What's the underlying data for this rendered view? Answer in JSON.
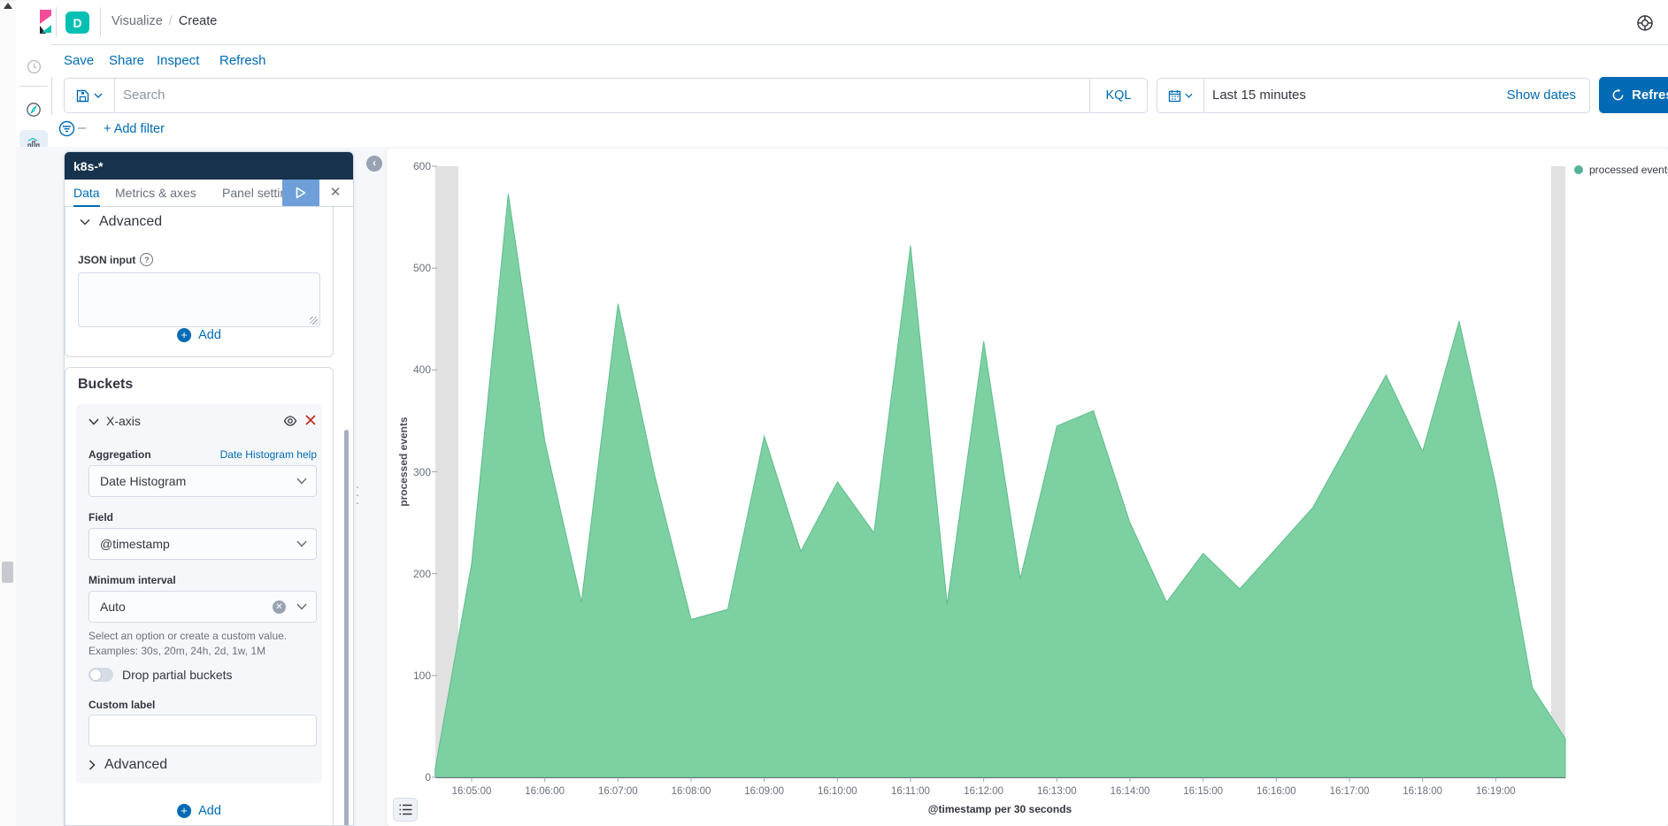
{
  "header": {
    "space_badge": "D",
    "breadcrumb": [
      "Visualize",
      "Create"
    ],
    "help_icon": "help-life-ring"
  },
  "toolbar": {
    "links": [
      "Save",
      "Share",
      "Inspect",
      "Refresh"
    ]
  },
  "query_bar": {
    "search_placeholder": "Search",
    "language_toggle": "KQL",
    "date_quick": "Last 15 minutes",
    "show_dates": "Show dates",
    "refresh_button": "Refresh"
  },
  "filter_bar": {
    "add_filter": "+ Add filter"
  },
  "sidebar": {
    "items": [
      {
        "icon": "discover",
        "active": false
      },
      {
        "icon": "visualize",
        "active": true
      },
      {
        "icon": "dashboard",
        "active": false
      },
      {
        "icon": "canvas",
        "active": false
      },
      {
        "icon": "maps",
        "active": false
      },
      {
        "icon": "machine-learning",
        "active": false
      },
      {
        "icon": "infrastructure",
        "active": false
      },
      {
        "icon": "logs",
        "active": false
      },
      {
        "icon": "apm",
        "active": false
      },
      {
        "icon": "uptime",
        "active": false
      },
      {
        "icon": "siem",
        "active": false
      },
      {
        "icon": "dev-tools",
        "active": false
      },
      {
        "icon": "stack-monitoring",
        "active": false
      },
      {
        "icon": "management",
        "active": false
      }
    ]
  },
  "editor": {
    "index_title": "k8s-*",
    "tabs": [
      "Data",
      "Metrics & axes",
      "Panel settings"
    ],
    "active_tab": "Data",
    "metrics_card": {
      "advanced_label": "Advanced",
      "json_input_label": "JSON input",
      "add_label": "Add"
    },
    "buckets_card": {
      "title": "Buckets",
      "section_label": "X-axis",
      "aggregation_label": "Aggregation",
      "aggregation_help": "Date Histogram help",
      "aggregation_value": "Date Histogram",
      "field_label": "Field",
      "field_value": "@timestamp",
      "min_interval_label": "Minimum interval",
      "min_interval_value": "Auto",
      "hint_line1": "Select an option or create a custom value.",
      "hint_line2": "Examples: 30s, 20m, 24h, 2d, 1w, 1M",
      "drop_partial_label": "Drop partial buckets",
      "custom_label": "Custom label",
      "advanced_label": "Advanced",
      "add_label": "Add"
    }
  },
  "chart_data": {
    "type": "area",
    "series": [
      {
        "name": "processed events",
        "color": "#7CD0A1",
        "values": [
          8,
          210,
          573,
          330,
          172,
          465,
          297,
          155,
          165,
          335,
          222,
          290,
          240,
          522,
          170,
          428,
          195,
          345,
          360,
          250,
          172,
          220,
          185,
          225,
          265,
          330,
          395,
          320,
          448,
          287,
          88
        ]
      }
    ],
    "x": [
      "16:04:30",
      "16:05:00",
      "16:05:30",
      "16:06:00",
      "16:06:30",
      "16:07:00",
      "16:07:30",
      "16:08:00",
      "16:08:30",
      "16:09:00",
      "16:09:30",
      "16:10:00",
      "16:10:30",
      "16:11:00",
      "16:11:30",
      "16:12:00",
      "16:12:30",
      "16:13:00",
      "16:13:30",
      "16:14:00",
      "16:14:30",
      "16:15:00",
      "16:15:30",
      "16:16:00",
      "16:16:30",
      "16:17:00",
      "16:17:30",
      "16:18:00",
      "16:18:30",
      "16:19:00",
      "16:19:30"
    ],
    "x_tick_labels": [
      "16:05:00",
      "16:06:00",
      "16:07:00",
      "16:08:00",
      "16:09:00",
      "16:10:00",
      "16:11:00",
      "16:12:00",
      "16:13:00",
      "16:14:00",
      "16:15:00",
      "16:16:00",
      "16:17:00",
      "16:18:00",
      "16:19:00"
    ],
    "y_ticks": [
      0,
      100,
      200,
      300,
      400,
      500,
      600
    ],
    "ylim": [
      0,
      600
    ],
    "ylabel": "processed events",
    "xlabel": "@timestamp per 30 seconds",
    "legend_label": "processed events",
    "legend_position": "top-right",
    "grid": false,
    "edge_tail_value": 38,
    "partial_bucket_bands": "grey endzone bands at left and right plot edges"
  },
  "colors": {
    "link_blue": "#006BB4",
    "teal_brand": "#00BFB3",
    "navy_header": "#16324c",
    "area_green": "#7CD0A1",
    "legend_dot_green": "#54B399",
    "border": "#D3DAE6",
    "text_dark": "#343741",
    "text_mid": "#69707D",
    "endzone_grey": "#e1e1e1"
  }
}
